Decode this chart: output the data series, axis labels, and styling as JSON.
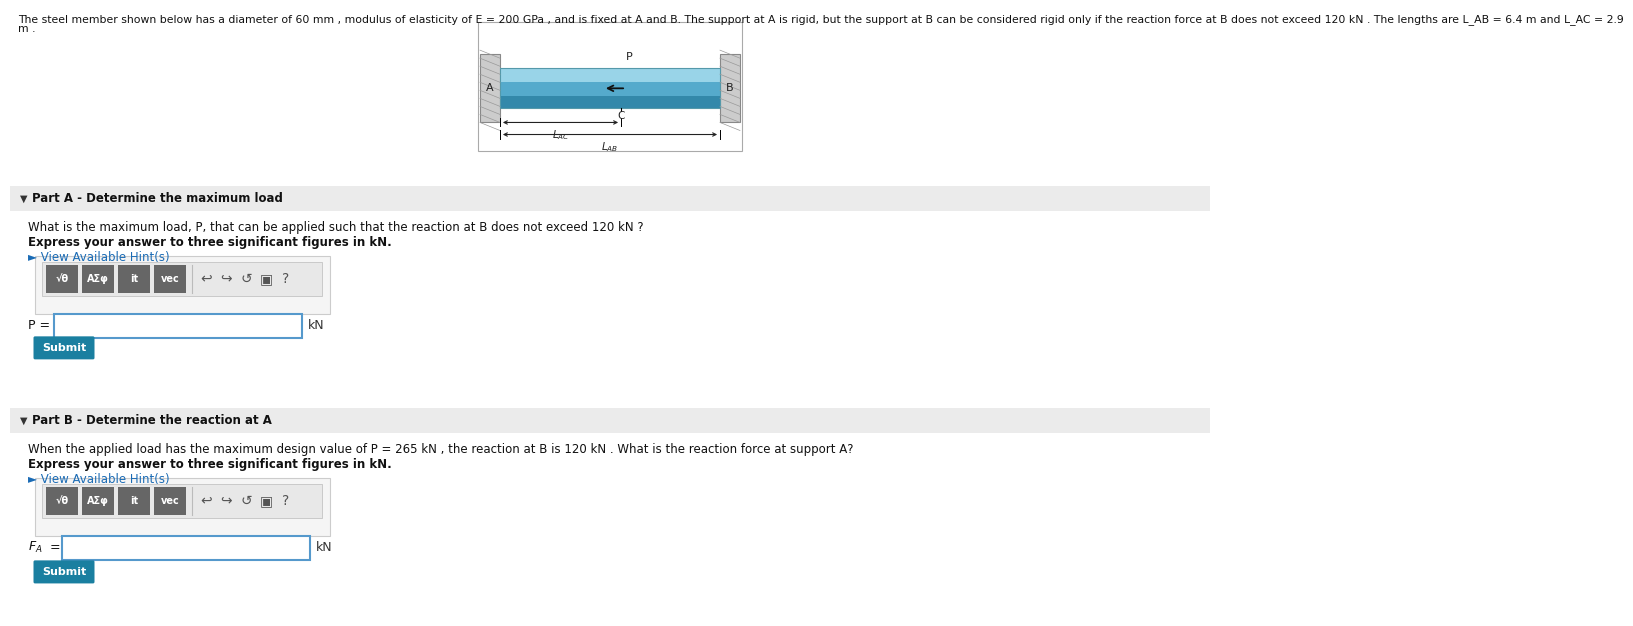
{
  "bg_top": "#cce5f0",
  "bg_white": "#ffffff",
  "bg_section_header": "#ebebeb",
  "bg_toolbar": "#f2f2f2",
  "bg_btn": "#888888",
  "title_line1": "The steel member shown below has a diameter of 60 mm , modulus of elasticity of E = 200 GPa , and is fixed at A and B. The support at A is rigid, but the support at B can be considered rigid only if the reaction force at B does not exceed 120 kN . The lengths are L_AB = 6.4 m and L_AC = 2.9",
  "title_line2": "m .",
  "part_a_header": "Part A - Determine the maximum load",
  "part_a_q": "What is the maximum load, P, that can be applied such that the reaction at B does not exceed 120 kN ?",
  "part_a_instr": "Express your answer to three significant figures in kN.",
  "part_a_hint": "► View Available Hint(s)",
  "part_a_label": "P =",
  "part_a_unit": "kN",
  "part_b_header": "Part B - Determine the reaction at A",
  "part_b_q": "When the applied load has the maximum design value of P = 265 kN , the reaction at B is 120 kN . What is the reaction force at support A?",
  "part_b_instr": "Express your answer to three significant figures in kN.",
  "part_b_hint": "► View Available Hint(s)",
  "part_b_label": "F_A =",
  "part_b_unit": "kN",
  "submit_color": "#1a7fa0",
  "hint_color": "#1a6bb5",
  "bold_instr": true,
  "diagram_bg": "#cce5f0",
  "rod_color": "#88ccdd",
  "rod_edge": "#5599aa",
  "rod_mid": "#aaddee",
  "wall_color": "#cccccc",
  "wall_edge": "#888888"
}
